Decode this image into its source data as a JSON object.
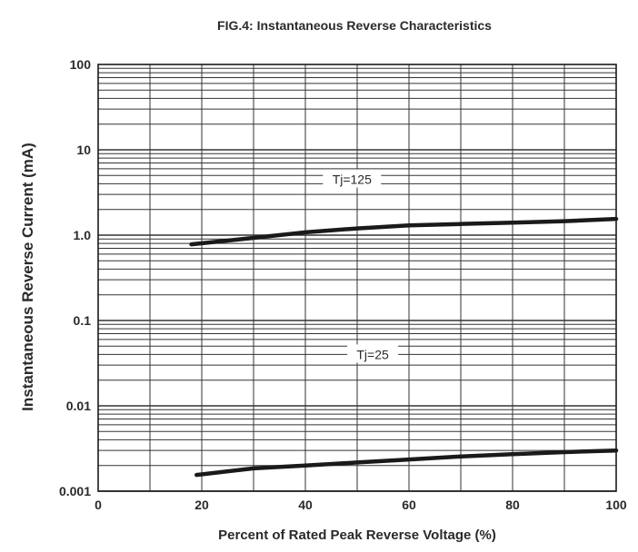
{
  "chart_data": {
    "type": "line",
    "title": "FIG.4: Instantaneous Reverse Characteristics",
    "xlabel": "Percent of Rated Peak Reverse Voltage (%)",
    "ylabel": "Instantaneous Reverse Current (mA)",
    "xlim": [
      0,
      100
    ],
    "ylim": [
      0.001,
      100
    ],
    "yscale": "log",
    "grid": true,
    "x_ticks": [
      {
        "value": 0,
        "label": "0"
      },
      {
        "value": 20,
        "label": "20"
      },
      {
        "value": 40,
        "label": "40"
      },
      {
        "value": 60,
        "label": "60"
      },
      {
        "value": 80,
        "label": "80"
      },
      {
        "value": 100,
        "label": "100"
      }
    ],
    "y_ticks": [
      {
        "value": 100,
        "label": "100"
      },
      {
        "value": 10,
        "label": "10"
      },
      {
        "value": 1,
        "label": "1.0"
      },
      {
        "value": 0.1,
        "label": "0.1"
      },
      {
        "value": 0.01,
        "label": "0.01"
      },
      {
        "value": 0.001,
        "label": "0.001"
      }
    ],
    "series": [
      {
        "name": "Tj=125",
        "x": [
          18,
          30,
          40,
          50,
          60,
          70,
          80,
          90,
          100
        ],
        "y": [
          0.78,
          0.93,
          1.08,
          1.2,
          1.3,
          1.35,
          1.4,
          1.46,
          1.55
        ]
      },
      {
        "name": "Tj=25",
        "x": [
          19,
          30,
          40,
          50,
          60,
          70,
          80,
          90,
          100
        ],
        "y": [
          0.00155,
          0.00185,
          0.002,
          0.00217,
          0.00235,
          0.00255,
          0.00272,
          0.00287,
          0.003
        ]
      }
    ],
    "annotations": [
      {
        "text": "Tj=125",
        "x": 49,
        "y": 4.5
      },
      {
        "text": "Tj=25",
        "x": 53,
        "y": 0.04
      }
    ],
    "line_color": "#1a1a1a",
    "grid_color": "#333333"
  }
}
